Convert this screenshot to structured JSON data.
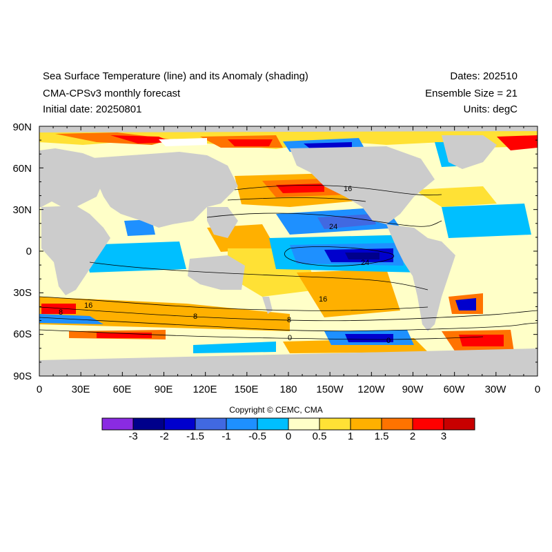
{
  "header": {
    "title": "Sea Surface Temperature (line) and its Anomaly (shading)",
    "model": "CMA-CPSv3 monthly forecast",
    "initial_date": "Initial date: 20250801",
    "dates": "Dates: 202510",
    "ensemble": "Ensemble Size = 21",
    "units": "Units: degC"
  },
  "axes": {
    "lat_labels": [
      "90N",
      "60N",
      "30N",
      "0",
      "30S",
      "60S",
      "90S"
    ],
    "lon_labels": [
      "0",
      "30E",
      "60E",
      "90E",
      "120E",
      "150E",
      "180",
      "150W",
      "120W",
      "90W",
      "60W",
      "30W",
      "0"
    ]
  },
  "contour_labels": [
    "16",
    "24",
    "24",
    "16",
    "16",
    "8",
    "8",
    "8",
    "0",
    "0"
  ],
  "colorbar": {
    "labels": [
      "-3",
      "-2",
      "-1.5",
      "-1",
      "-0.5",
      "0",
      "0.5",
      "1",
      "1.5",
      "2",
      "3"
    ],
    "colors": [
      "#8a2be2",
      "#00008b",
      "#0000cd",
      "#4169e1",
      "#1e90ff",
      "#00bfff",
      "#ffffc8",
      "#ffe135",
      "#ffb000",
      "#ff7300",
      "#ff0000",
      "#c80000"
    ]
  },
  "copyright": "Copyright © CEMC, CMA",
  "colors": {
    "land": "#cccccc",
    "border": "#000000"
  }
}
